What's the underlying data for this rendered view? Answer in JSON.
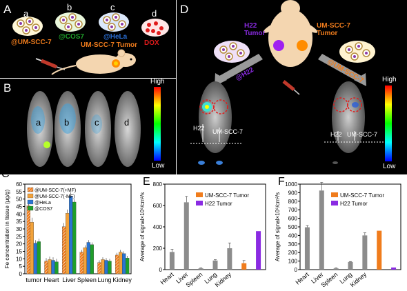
{
  "panel_A": {
    "label": "A",
    "groups": [
      {
        "letter": "a",
        "caption": "@UM-SCC-7"
      },
      {
        "letter": "b",
        "caption": "@COS7"
      },
      {
        "letter": "c",
        "caption": "@HeLa"
      },
      {
        "letter": "d",
        "caption": "DOX"
      }
    ],
    "tumor_label": "UM-SCC-7 Tumor",
    "colors": {
      "orange": "#f07c1c",
      "green": "#1fa12a",
      "blue": "#2a6fd6",
      "red": "#e11b1b"
    }
  },
  "panel_B": {
    "label": "B",
    "mouse_letters": [
      "a",
      "b",
      "c",
      "d"
    ],
    "colorbar_high": "High",
    "colorbar_low": "Low"
  },
  "panel_D": {
    "label": "D",
    "h22_tumor": "H22\nTumor",
    "umscc_tumor": "UM-SCC-7\nTumor",
    "left_arrow_label": "@H22",
    "right_arrow_label": "@UM-SCC-7",
    "left_h22": "H22",
    "left_umscc": "UM-SCC-7",
    "right_h22": "H22",
    "right_umscc": "UM-SCC-7",
    "colorbar_high": "High",
    "colorbar_low": "Low",
    "colors": {
      "purple": "#8a2be2",
      "orange": "#f07c1c"
    }
  },
  "chart_data": [
    {
      "panel": "C",
      "type": "bar",
      "ylabel": "Fe concentration in tissue (μg/g)",
      "ylim": [
        0,
        60
      ],
      "yticks": [
        0,
        5,
        10,
        15,
        20,
        25,
        30,
        35,
        40,
        45,
        50,
        55,
        60
      ],
      "categories": [
        "tumor",
        "Heart",
        "Liver",
        "Spleen",
        "Lung",
        "Kidney"
      ],
      "legend_position": "top-left",
      "series": [
        {
          "name": "@UM-SCC-7(+MF)",
          "color": "#f07c1c",
          "hatch": true,
          "values": [
            45.5,
            8.5,
            31.5,
            14.5,
            7.5,
            12.5
          ],
          "errors": [
            2,
            2,
            2.5,
            1.5,
            1.5,
            1.5
          ]
        },
        {
          "name": "@UM-SCC-7(-MF)",
          "color": "#f2a23a",
          "hatch": false,
          "values": [
            34.5,
            9.5,
            40.5,
            17.5,
            9.5,
            14.5
          ],
          "errors": [
            3,
            2,
            2.5,
            1.5,
            1.5,
            1.5
          ]
        },
        {
          "name": "@HeLa",
          "color": "#2a74d2",
          "hatch": false,
          "values": [
            20.5,
            9.0,
            52.0,
            21.0,
            9.0,
            13.5
          ],
          "errors": [
            2,
            2,
            2.5,
            1.5,
            1.5,
            1.5
          ]
        },
        {
          "name": "@COS7",
          "color": "#1f9e2a",
          "hatch": false,
          "values": [
            21.5,
            8.0,
            48.0,
            19.5,
            8.5,
            10.5
          ],
          "errors": [
            2,
            2,
            2,
            1.5,
            1.5,
            1.5
          ]
        }
      ]
    },
    {
      "panel": "E",
      "type": "bar",
      "ylabel": "Average of signal×10⁶/cm²/s",
      "ylim": [
        0,
        800
      ],
      "yticks": [
        0,
        200,
        400,
        600,
        800
      ],
      "categories": [
        "Heart",
        "Liver",
        "Spleen",
        "Lung",
        "Kidney",
        "UM-SCC-7 Tumor",
        "H22 Tumor"
      ],
      "tick_labels": [
        "Heart",
        "Liver",
        "Spleen",
        "Lung",
        "Kidney"
      ],
      "legend": [
        {
          "name": "UM-SCC-7 Tumor",
          "color": "#f07c1c"
        },
        {
          "name": "H22 Tumor",
          "color": "#8a2be2"
        }
      ],
      "values": [
        165,
        630,
        12,
        85,
        200,
        60,
        360
      ],
      "errors": [
        25,
        55,
        5,
        8,
        50,
        25,
        0
      ],
      "colors": [
        "#8c8c8c",
        "#8c8c8c",
        "#8c8c8c",
        "#8c8c8c",
        "#8c8c8c",
        "#f07c1c",
        "#8a2be2"
      ]
    },
    {
      "panel": "F",
      "type": "bar",
      "ylabel": "Average of signal×10⁶/cm²/s",
      "ylim": [
        0,
        1000
      ],
      "yticks": [
        0,
        100,
        200,
        300,
        400,
        500,
        600,
        700,
        800,
        900,
        1000
      ],
      "categories": [
        "Heart",
        "Liver",
        "Spleen",
        "Lung",
        "Kidney",
        "UM-SCC-7 Tumor",
        "H22 Tumor"
      ],
      "tick_labels": [
        "Heart",
        "Liver",
        "Spleen",
        "Lung",
        "Kidney"
      ],
      "legend": [
        {
          "name": "UM-SCC-7 Tumor",
          "color": "#f07c1c"
        },
        {
          "name": "H22 Tumor",
          "color": "#8a2be2"
        }
      ],
      "values": [
        495,
        925,
        15,
        90,
        400,
        455,
        25
      ],
      "errors": [
        20,
        95,
        5,
        5,
        30,
        0,
        0
      ],
      "colors": [
        "#8c8c8c",
        "#8c8c8c",
        "#8c8c8c",
        "#8c8c8c",
        "#8c8c8c",
        "#f07c1c",
        "#8a2be2"
      ]
    }
  ]
}
